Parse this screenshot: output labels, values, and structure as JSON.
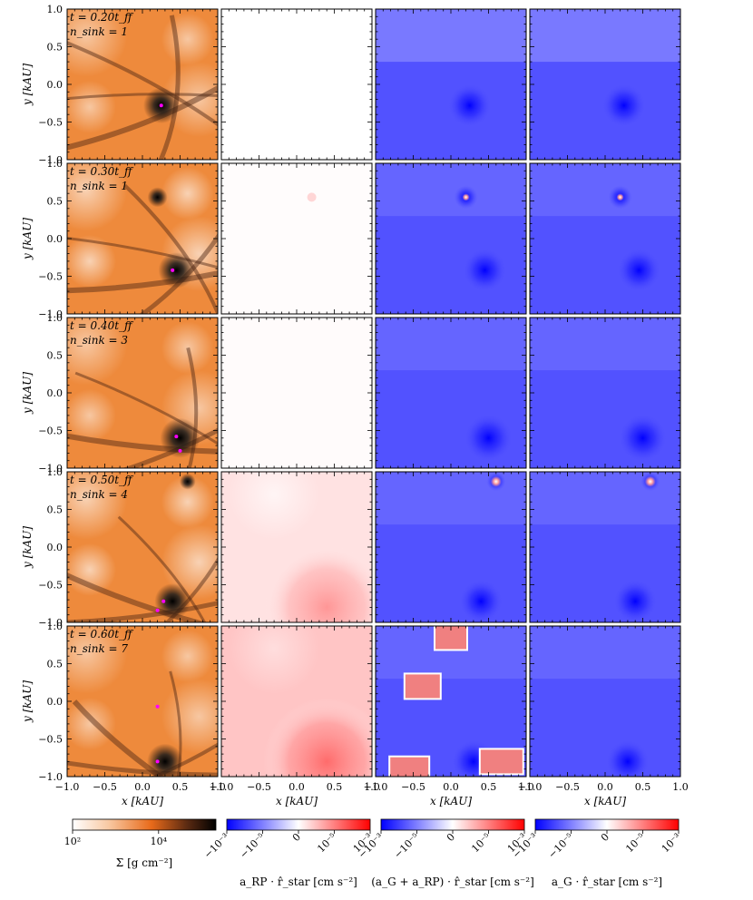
{
  "figure": {
    "ylabel": "y [kAU]",
    "xlabel": "x [kAU]"
  },
  "chart_data": {
    "type": "heatmap",
    "layout": "grid of maps, 5 rows (time snapshots) by 4 columns (quantities)",
    "xlim": [
      -1.0,
      1.0
    ],
    "ylim": [
      -1.0,
      1.0
    ],
    "x_ticks": [
      "−1.0",
      "−0.5",
      "0.0",
      "0.5",
      "1.0"
    ],
    "y_ticks": [
      "−1.0",
      "−0.5",
      "0.0",
      "0.5",
      "1.0"
    ],
    "rows": [
      {
        "time_label": "t = 0.20t_ff",
        "nsink_label": "n_sink = 1",
        "t": 0.2,
        "n_sink": 1,
        "sinks": [
          [
            0.25,
            -0.28
          ]
        ],
        "features": [
          [
            0.25,
            -0.28,
            0.9
          ]
        ],
        "rp_strength": 0.0,
        "rp_hotspots": []
      },
      {
        "time_label": "t = 0.30t_ff",
        "nsink_label": "n_sink = 1",
        "t": 0.3,
        "n_sink": 1,
        "sinks": [
          [
            0.4,
            -0.42
          ]
        ],
        "features": [
          [
            0.45,
            -0.42,
            0.9
          ],
          [
            0.2,
            0.55,
            0.5
          ]
        ],
        "rp_strength": 0.02,
        "rp_hotspots": [
          [
            0.2,
            0.55
          ]
        ]
      },
      {
        "time_label": "t = 0.40t_ff",
        "nsink_label": "n_sink = 3",
        "t": 0.4,
        "n_sink": 3,
        "sinks": [
          [
            0.45,
            -0.58
          ],
          [
            0.5,
            -0.77
          ]
        ],
        "features": [
          [
            0.5,
            -0.6,
            1.0
          ]
        ],
        "rp_strength": 0.03,
        "rp_hotspots": []
      },
      {
        "time_label": "t = 0.50t_ff",
        "nsink_label": "n_sink = 4",
        "t": 0.5,
        "n_sink": 4,
        "sinks": [
          [
            0.28,
            -0.72
          ],
          [
            0.2,
            -0.84
          ]
        ],
        "features": [
          [
            0.4,
            -0.72,
            0.9
          ],
          [
            0.6,
            0.87,
            0.4
          ]
        ],
        "rp_strength": 0.22,
        "rp_hotspots": [
          [
            0.6,
            0.87
          ]
        ]
      },
      {
        "time_label": "t = 0.60t_ff",
        "nsink_label": "n_sink = 7",
        "t": 0.6,
        "n_sink": 7,
        "sinks": [
          [
            0.2,
            -0.07
          ],
          [
            0.2,
            -0.8
          ]
        ],
        "features": [
          [
            0.3,
            -0.8,
            0.9
          ]
        ],
        "rp_strength": 0.45,
        "rp_hotspots": [
          [
            0.0,
            0.85
          ],
          [
            -0.4,
            0.2
          ],
          [
            -0.6,
            -0.9
          ],
          [
            0.6,
            -0.8
          ]
        ]
      }
    ],
    "columns": [
      {
        "quantity": "surface density Σ",
        "colormap": "gist_heat_r"
      },
      {
        "quantity": "a_RP · r̂_star",
        "colormap": "bwr"
      },
      {
        "quantity": "(a_G + a_RP) · r̂_star",
        "colormap": "bwr"
      },
      {
        "quantity": "a_G · r̂_star",
        "colormap": "bwr"
      }
    ],
    "colorbars": [
      {
        "label": "Σ [g cm⁻²]",
        "scale": "log",
        "ticks": [
          "10²",
          "10⁴"
        ]
      },
      {
        "label": "a_RP · r̂_star [cm s⁻²]",
        "scale": "symlog",
        "ticks": [
          "−10⁻³",
          "−10⁻⁵",
          "0",
          "10⁻⁵",
          "10⁻³"
        ]
      },
      {
        "label": "(a_G + a_RP) · r̂_star [cm s⁻²]",
        "scale": "symlog",
        "ticks": [
          "−10⁻³",
          "−10⁻⁵",
          "0",
          "10⁻⁵",
          "10⁻³"
        ]
      },
      {
        "label": "a_G · r̂_star [cm s⁻²]",
        "scale": "symlog",
        "ticks": [
          "−10⁻³",
          "−10⁻⁵",
          "0",
          "10⁻⁵",
          "10⁻³"
        ]
      }
    ],
    "colors": {
      "sink_marker": "#ff00ff",
      "sigma_low": "#fdf6f0",
      "sigma_mid": "#e86a1a",
      "sigma_high": "#0a0a0a",
      "neg_max": "#0000ff",
      "zero": "#ffffff",
      "pos_max": "#ff0000"
    }
  }
}
